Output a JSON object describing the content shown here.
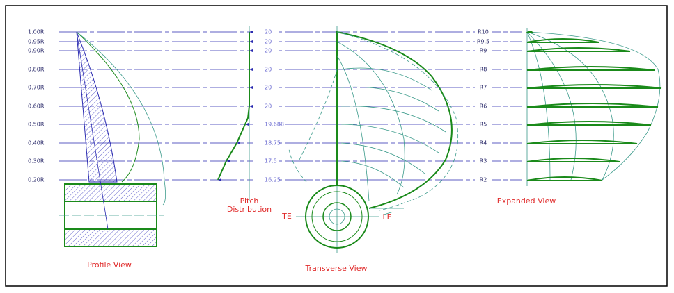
{
  "radii": [
    "1.00R",
    "0.95R",
    "0.90R",
    "0.80R",
    "0.70R",
    "0.60R",
    "0.50R",
    "0.40R",
    "0.30R",
    "0.20R"
  ],
  "pitch": [
    "20",
    "20",
    "20",
    "20",
    "20",
    "20",
    "19.688",
    "18.75",
    "17.5",
    "16.25"
  ],
  "sections": [
    "R10",
    "R9.5",
    "R9",
    "R8",
    "R7",
    "R6",
    "R5",
    "R4",
    "R3",
    "R2"
  ],
  "views": {
    "profile": "Profile View",
    "pitch": [
      "Pitch",
      "Distribution"
    ],
    "transverse": "Transverse View",
    "expanded": "Expanded View"
  },
  "edges": {
    "trailing": "TE",
    "leading": "LE"
  }
}
